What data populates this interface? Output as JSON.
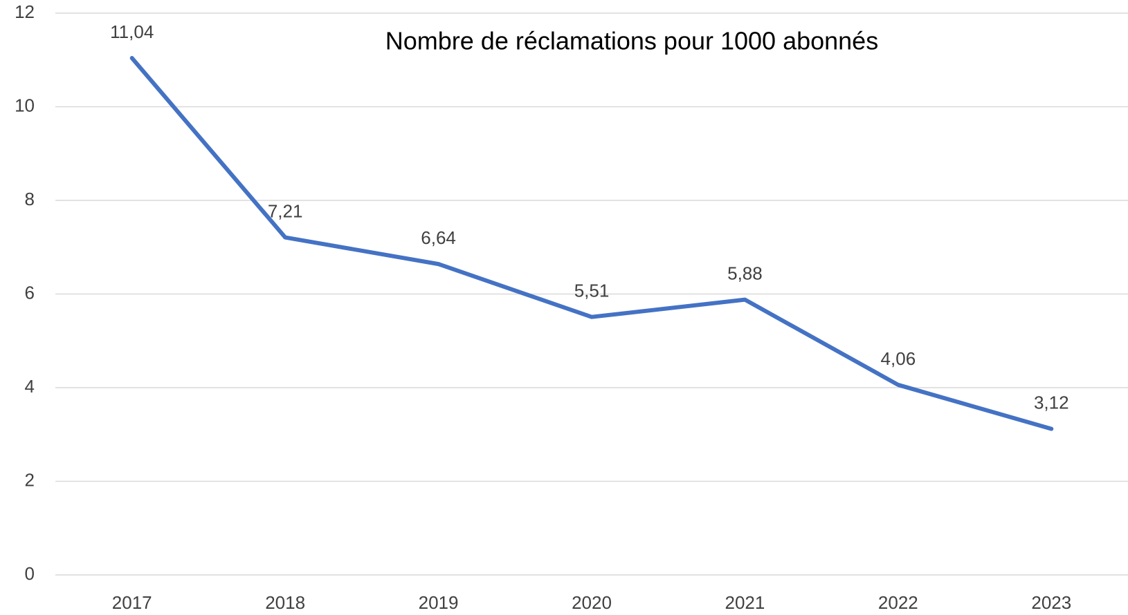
{
  "chart_data": {
    "type": "line",
    "title": "Nombre de réclamations pour 1000 abonnés",
    "categories": [
      "2017",
      "2018",
      "2019",
      "2020",
      "2021",
      "2022",
      "2023"
    ],
    "values": [
      11.04,
      7.21,
      6.64,
      5.51,
      5.88,
      4.06,
      3.12
    ],
    "value_labels": [
      "11,04",
      "7,21",
      "6,64",
      "5,51",
      "5,88",
      "4,06",
      "3,12"
    ],
    "color": "#4472c4",
    "ylim": [
      0,
      12
    ],
    "yticks": [
      0,
      2,
      4,
      6,
      8,
      10,
      12
    ],
    "grid": true
  }
}
